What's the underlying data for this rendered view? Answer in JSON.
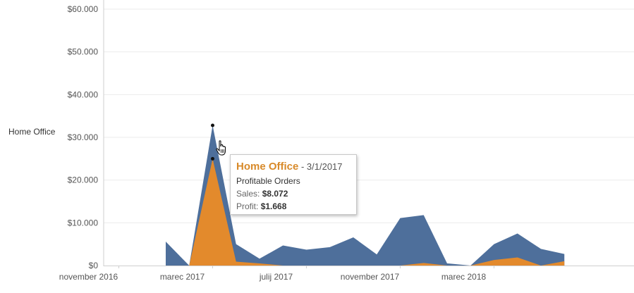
{
  "chart_data": {
    "type": "area",
    "row_label": "Home Office",
    "y_ticks": [
      {
        "value": 0,
        "label": "$0"
      },
      {
        "value": 10000,
        "label": "$10.000"
      },
      {
        "value": 20000,
        "label": "$20.000"
      },
      {
        "value": 30000,
        "label": "$30.000"
      },
      {
        "value": 40000,
        "label": "$40.000"
      },
      {
        "value": 50000,
        "label": "$50.000"
      },
      {
        "value": 60000,
        "label": "$60.000"
      }
    ],
    "ylim": [
      0,
      60000
    ],
    "x_ticks": [
      {
        "value": "2016-11",
        "label": "november 2016"
      },
      {
        "value": "2017-03",
        "label": "marec 2017"
      },
      {
        "value": "2017-07",
        "label": "julij 2017"
      },
      {
        "value": "2017-11",
        "label": "november 2017"
      },
      {
        "value": "2018-03",
        "label": "marec 2018"
      }
    ],
    "xlim": [
      "2016-10",
      "2018-07"
    ],
    "grid": true,
    "series": [
      {
        "color": "#4e6f9b",
        "points": [
          {
            "x": "2017-01",
            "y": 5600
          },
          {
            "x": "2017-02",
            "y": 0
          },
          {
            "x": "2017-03",
            "y": 32800
          },
          {
            "x": "2017-04",
            "y": 5000
          },
          {
            "x": "2017-05",
            "y": 1600
          },
          {
            "x": "2017-06",
            "y": 4700
          },
          {
            "x": "2017-07",
            "y": 3700
          },
          {
            "x": "2017-08",
            "y": 4300
          },
          {
            "x": "2017-09",
            "y": 6600
          },
          {
            "x": "2017-10",
            "y": 2600
          },
          {
            "x": "2017-11",
            "y": 11100
          },
          {
            "x": "2017-12",
            "y": 11800
          },
          {
            "x": "2018-01",
            "y": 500
          },
          {
            "x": "2018-02",
            "y": 0
          },
          {
            "x": "2018-03",
            "y": 5000
          },
          {
            "x": "2018-04",
            "y": 7500
          },
          {
            "x": "2018-05",
            "y": 3900
          },
          {
            "x": "2018-06",
            "y": 2700
          }
        ]
      },
      {
        "color": "#e38a2c",
        "points": [
          {
            "x": "2017-01",
            "y": 0
          },
          {
            "x": "2017-02",
            "y": 0
          },
          {
            "x": "2017-03",
            "y": 25000
          },
          {
            "x": "2017-04",
            "y": 900
          },
          {
            "x": "2017-05",
            "y": 500
          },
          {
            "x": "2017-06",
            "y": 0
          },
          {
            "x": "2017-07",
            "y": 0
          },
          {
            "x": "2017-08",
            "y": 0
          },
          {
            "x": "2017-09",
            "y": 0
          },
          {
            "x": "2017-10",
            "y": 0
          },
          {
            "x": "2017-11",
            "y": 0
          },
          {
            "x": "2017-12",
            "y": 600
          },
          {
            "x": "2018-01",
            "y": 0
          },
          {
            "x": "2018-02",
            "y": 0
          },
          {
            "x": "2018-03",
            "y": 1300
          },
          {
            "x": "2018-04",
            "y": 1900
          },
          {
            "x": "2018-05",
            "y": 0
          },
          {
            "x": "2018-06",
            "y": 1000
          }
        ]
      }
    ]
  },
  "tooltip": {
    "title": "Home Office",
    "date": " - 3/1/2017",
    "subtitle": "Profitable Orders",
    "sales_label": "Sales:",
    "sales_value": "$8.072",
    "profit_label": "Profit:",
    "profit_value": "$1.668",
    "title_color": "#d88a2a"
  },
  "icons": {
    "cursor": "hand-pointer-icon"
  }
}
